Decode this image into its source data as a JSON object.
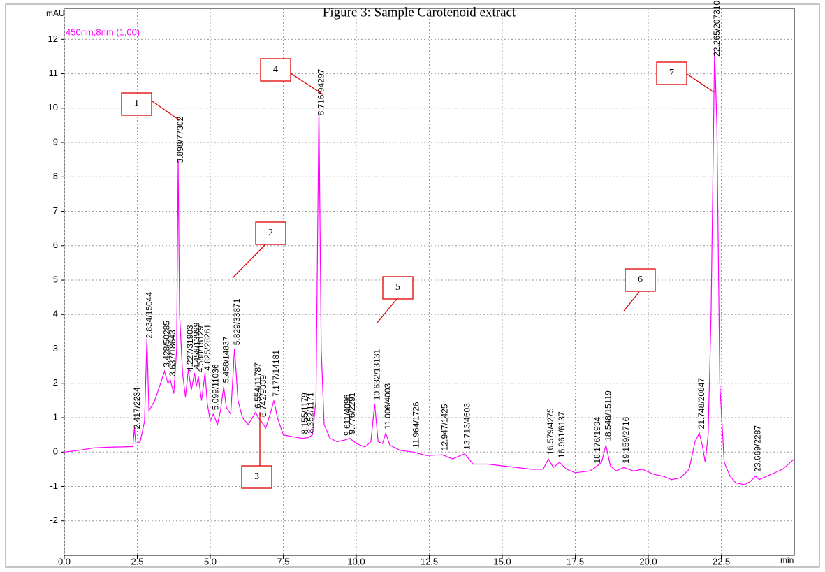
{
  "chart_data": {
    "type": "line",
    "title": "Figure 3: Sample Carotenoid extract",
    "y_label": "mAU",
    "x_label": "min",
    "x": [
      0,
      0.5,
      1.0,
      1.5,
      2.0,
      2.35,
      2.4,
      2.45,
      2.6,
      2.75,
      2.83,
      2.9,
      3.1,
      3.3,
      3.43,
      3.55,
      3.63,
      3.75,
      3.85,
      3.9,
      3.95,
      4.05,
      4.15,
      4.25,
      4.35,
      4.46,
      4.52,
      4.59,
      4.7,
      4.82,
      4.9,
      5.0,
      5.1,
      5.25,
      5.35,
      5.46,
      5.55,
      5.7,
      5.83,
      5.95,
      6.1,
      6.3,
      6.55,
      6.65,
      6.74,
      6.9,
      7.05,
      7.18,
      7.3,
      7.5,
      7.8,
      8.16,
      8.35,
      8.5,
      8.62,
      8.72,
      8.8,
      8.9,
      9.1,
      9.35,
      9.61,
      9.78,
      10.0,
      10.3,
      10.5,
      10.63,
      10.75,
      10.9,
      11.01,
      11.15,
      11.5,
      11.96,
      12.4,
      12.95,
      13.3,
      13.71,
      14.0,
      14.5,
      15.0,
      15.5,
      16.0,
      16.4,
      16.58,
      16.75,
      16.96,
      17.2,
      17.5,
      18.0,
      18.18,
      18.4,
      18.55,
      18.7,
      18.9,
      19.16,
      19.5,
      19.8,
      20.2,
      20.5,
      20.8,
      21.1,
      21.4,
      21.6,
      21.75,
      21.85,
      21.95,
      22.05,
      22.15,
      22.27,
      22.35,
      22.45,
      22.6,
      22.8,
      23.0,
      23.3,
      23.5,
      23.67,
      23.8,
      24.2,
      24.6,
      25.0
    ],
    "series": [
      {
        "name": "450nm,8nm (1,00)",
        "color": "#ff00ff",
        "values": [
          0,
          0.05,
          0.12,
          0.14,
          0.15,
          0.16,
          0.7,
          0.25,
          0.3,
          0.9,
          3.3,
          1.2,
          1.5,
          2.0,
          2.35,
          2.0,
          2.1,
          1.7,
          3.0,
          8.5,
          4.0,
          2.3,
          1.6,
          2.4,
          1.8,
          2.3,
          1.9,
          2.2,
          1.5,
          2.3,
          1.4,
          0.9,
          1.1,
          0.8,
          1.2,
          1.9,
          1.3,
          1.1,
          3.0,
          1.5,
          1.0,
          0.8,
          1.15,
          1.0,
          0.9,
          0.7,
          1.1,
          1.5,
          1.0,
          0.5,
          0.45,
          0.4,
          0.42,
          0.5,
          1.5,
          10.0,
          3.0,
          0.8,
          0.4,
          0.3,
          0.35,
          0.4,
          0.25,
          0.15,
          0.3,
          1.4,
          0.3,
          0.25,
          0.55,
          0.2,
          0.05,
          0.0,
          -0.1,
          -0.08,
          -0.2,
          -0.05,
          -0.35,
          -0.35,
          -0.4,
          -0.45,
          -0.5,
          -0.5,
          -0.2,
          -0.45,
          -0.3,
          -0.5,
          -0.6,
          -0.55,
          -0.45,
          -0.3,
          0.2,
          -0.4,
          -0.55,
          -0.45,
          -0.55,
          -0.5,
          -0.65,
          -0.7,
          -0.8,
          -0.75,
          -0.5,
          0.3,
          0.55,
          0.2,
          -0.3,
          0.5,
          4.0,
          11.7,
          9.5,
          2.0,
          -0.3,
          -0.7,
          -0.9,
          -0.95,
          -0.85,
          -0.7,
          -0.8,
          -0.65,
          -0.5,
          -0.2
        ]
      }
    ],
    "xlim": [
      0,
      25
    ],
    "ylim": [
      -3,
      12.9
    ],
    "xticks": [
      {
        "value": 0,
        "label": "0.0"
      },
      2.5,
      {
        "value": 5,
        "label": "5.0"
      },
      7.5,
      {
        "value": 10,
        "label": "10.0"
      },
      12.5,
      {
        "value": 15,
        "label": "15.0"
      },
      17.5,
      {
        "value": 20,
        "label": "20.0"
      },
      22.5
    ],
    "yticks": [
      -2,
      -1,
      0,
      1,
      2,
      3,
      4,
      5,
      6,
      7,
      8,
      9,
      10,
      11,
      12
    ],
    "grid": true,
    "peaks": [
      {
        "time": 2.417,
        "label": "2.417/2234"
      },
      {
        "time": 2.834,
        "label": "2.834/15044"
      },
      {
        "time": 3.428,
        "label": "3.428/50285"
      },
      {
        "time": 3.637,
        "label": "3.637/18643"
      },
      {
        "time": 3.898,
        "label": "3.898/77302"
      },
      {
        "time": 4.227,
        "label": "4.227/31903"
      },
      {
        "time": 4.458,
        "label": "4.458/13999"
      },
      {
        "time": 4.588,
        "label": "4.588/18129"
      },
      {
        "time": 4.825,
        "label": "4.825/28261"
      },
      {
        "time": 5.099,
        "label": "5.099/11036"
      },
      {
        "time": 5.458,
        "label": "5.458/14837"
      },
      {
        "time": 5.829,
        "label": "5.829/33871"
      },
      {
        "time": 6.554,
        "label": "6.554/11787"
      },
      {
        "time": 6.742,
        "label": "6.742/9339"
      },
      {
        "time": 7.177,
        "label": "7.177/14181"
      },
      {
        "time": 8.155,
        "label": "8.155/1179"
      },
      {
        "time": 8.352,
        "label": "8.352/1171"
      },
      {
        "time": 8.716,
        "label": "8.716/94297"
      },
      {
        "time": 9.611,
        "label": "9.611/4096"
      },
      {
        "time": 9.776,
        "label": "9.776/2291"
      },
      {
        "time": 10.632,
        "label": "10.632/13131"
      },
      {
        "time": 11.006,
        "label": "11.006/4003"
      },
      {
        "time": 11.964,
        "label": "11.964/1726"
      },
      {
        "time": 12.947,
        "label": "12.947/1425"
      },
      {
        "time": 13.713,
        "label": "13.713/4603"
      },
      {
        "time": 16.579,
        "label": "16.579/4275"
      },
      {
        "time": 16.961,
        "label": "16.961/6137"
      },
      {
        "time": 18.176,
        "label": "18.176/1934"
      },
      {
        "time": 18.548,
        "label": "18.548/15119"
      },
      {
        "time": 19.159,
        "label": "19.159/2716"
      },
      {
        "time": 21.748,
        "label": "21.748/20847"
      },
      {
        "time": 22.265,
        "label": "22.265/207310"
      },
      {
        "time": 23.669,
        "label": "23.669/2287"
      }
    ],
    "callouts": [
      "1",
      "2",
      "3",
      "4",
      "5",
      "6",
      "7"
    ]
  }
}
